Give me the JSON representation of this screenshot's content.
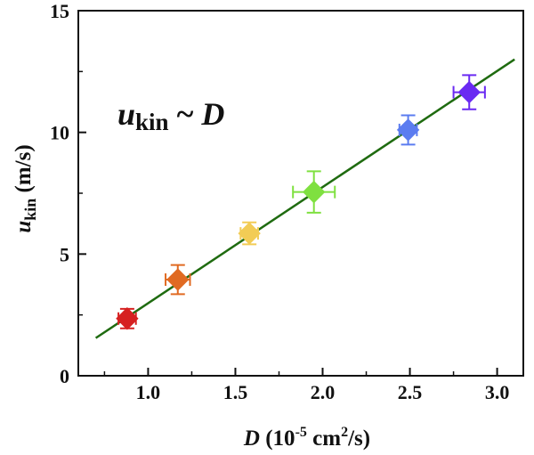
{
  "chart_data": {
    "type": "scatter",
    "xlabel": {
      "var": "D",
      "pre_exp": " (10",
      "exp": "-5",
      "mid": " cm",
      "exp2": "2",
      "post": "/s)"
    },
    "ylabel": {
      "var": "u",
      "sub": "kin",
      "unit": " (m/s)"
    },
    "annotation": {
      "var": "u",
      "sub": "kin",
      "mid": " ~ ",
      "var2": "D"
    },
    "xlim": [
      0.6,
      3.15
    ],
    "ylim": [
      0,
      15
    ],
    "xticks": [
      "1.0",
      "1.5",
      "2.0",
      "2.5",
      "3.0"
    ],
    "xtick_values": [
      1.0,
      1.5,
      2.0,
      2.5,
      3.0
    ],
    "yticks": [
      "0",
      "5",
      "10",
      "15"
    ],
    "ytick_values": [
      0,
      5,
      10,
      15
    ],
    "grid": false,
    "points": [
      {
        "x": 0.88,
        "y": 2.35,
        "xerr": 0.05,
        "yerr": 0.4,
        "color": "#d62020"
      },
      {
        "x": 1.17,
        "y": 3.95,
        "xerr": 0.07,
        "yerr": 0.6,
        "color": "#e06a22"
      },
      {
        "x": 1.58,
        "y": 5.85,
        "xerr": 0.05,
        "yerr": 0.45,
        "color": "#f2cc55"
      },
      {
        "x": 1.95,
        "y": 7.55,
        "xerr": 0.12,
        "yerr": 0.85,
        "color": "#7fe040"
      },
      {
        "x": 2.49,
        "y": 10.1,
        "xerr": 0.05,
        "yerr": 0.6,
        "color": "#5b7cf0"
      },
      {
        "x": 2.84,
        "y": 11.65,
        "xerr": 0.09,
        "yerr": 0.7,
        "color": "#6a2af2"
      }
    ],
    "fit_line": {
      "x": [
        0.7,
        3.1
      ],
      "y": [
        1.55,
        13.0
      ],
      "color": "#1f6b10"
    }
  }
}
